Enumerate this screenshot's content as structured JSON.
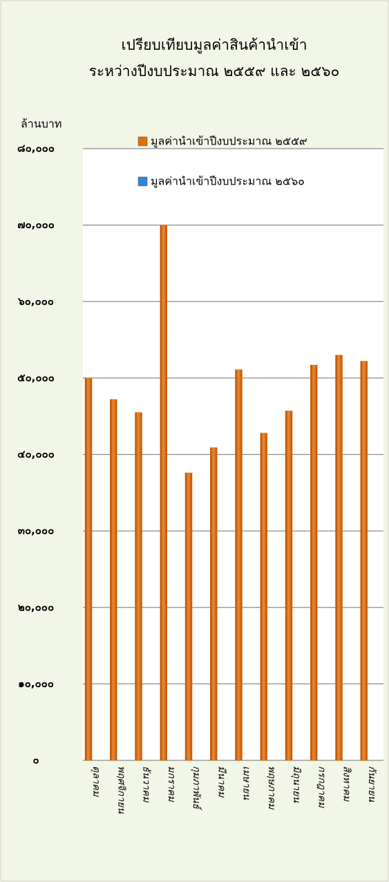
{
  "chart_data": {
    "type": "bar",
    "title": [
      "เปรียบเทียบมูลค่าสินค้านำเข้า",
      "ระหว่างปีงบประมาณ ๒๕๕๙ และ ๒๕๖๐"
    ],
    "y_label": "ล้านบาท",
    "categories": [
      "ตุลาคม",
      "พฤศจิกายน",
      "ธันวาคม",
      "มกราคม",
      "กุมภาพันธ์",
      "มีนาคม",
      "เมษายน",
      "พฤษภาคม",
      "มิถุนายน",
      "กรกฎาคม",
      "สิงหาคม",
      "กันยายน"
    ],
    "series": [
      {
        "name": "มูลค่านำเข้าปีงบประมาณ ๒๕๕๙",
        "color": "#e46c0a",
        "values": [
          50000,
          47200,
          45500,
          70000,
          37600,
          40900,
          51100,
          42800,
          45700,
          51700,
          53000,
          52200
        ]
      },
      {
        "name": "มูลค่านำเข้าปีงบประมาณ ๒๕๖๐",
        "color": "#2e86d6",
        "values": [
          null,
          null,
          null,
          null,
          null,
          null,
          null,
          null,
          null,
          null,
          null,
          null
        ]
      }
    ],
    "ylim": [
      0,
      80000
    ],
    "yticks": [
      {
        "value": 0,
        "label": "๐"
      },
      {
        "value": 10000,
        "label": "๑๐,๐๐๐"
      },
      {
        "value": 20000,
        "label": "๒๐,๐๐๐"
      },
      {
        "value": 30000,
        "label": "๓๐,๐๐๐"
      },
      {
        "value": 40000,
        "label": "๔๐,๐๐๐"
      },
      {
        "value": 50000,
        "label": "๕๐,๐๐๐"
      },
      {
        "value": 60000,
        "label": "๖๐,๐๐๐"
      },
      {
        "value": 70000,
        "label": "๗๐,๐๐๐"
      },
      {
        "value": 80000,
        "label": "๘๐,๐๐๐"
      }
    ],
    "grid": true
  }
}
